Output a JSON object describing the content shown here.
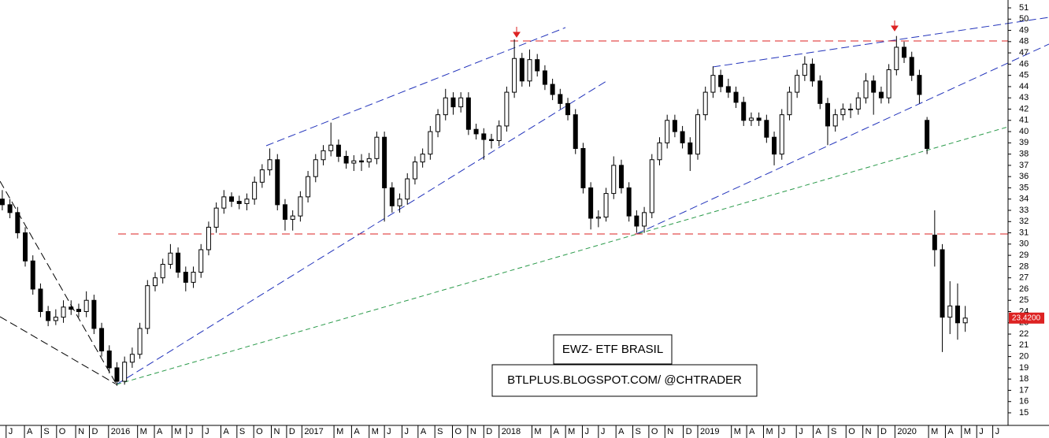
{
  "chart_data": {
    "type": "candlestick",
    "annotations": [
      "EWZ- ETF BRASIL",
      "BTLPLUS.BLOGSPOT.COM/ @CHTRADER"
    ],
    "last_price": {
      "value": 23.42,
      "label": "23.4200"
    },
    "up_color": "#ffffff",
    "down_color": "#000000",
    "wick_color": "#000000",
    "xlim": [
      -0.3,
      131.6
    ],
    "ylim": [
      13.88,
      51.7
    ],
    "yticks": [
      15,
      16,
      17,
      18,
      19,
      20,
      21,
      22,
      23,
      24,
      25,
      26,
      27,
      28,
      29,
      30,
      31,
      32,
      33,
      34,
      35,
      36,
      37,
      38,
      39,
      40,
      41,
      42,
      43,
      44,
      45,
      46,
      47,
      48,
      49,
      50,
      51
    ],
    "xticks": [
      {
        "value": 0.5,
        "label": "J"
      },
      {
        "value": 2.9,
        "label": "A"
      },
      {
        "value": 5.1,
        "label": "S"
      },
      {
        "value": 7.1,
        "label": "O"
      },
      {
        "value": 9.6,
        "label": "N"
      },
      {
        "value": 11.4,
        "label": "D"
      },
      {
        "value": 13.9,
        "label": "2016"
      },
      {
        "value": 17.7,
        "label": "M"
      },
      {
        "value": 19.9,
        "label": "A"
      },
      {
        "value": 22.2,
        "label": "M"
      },
      {
        "value": 24.1,
        "label": "J"
      },
      {
        "value": 26.2,
        "label": "J"
      },
      {
        "value": 28.6,
        "label": "A"
      },
      {
        "value": 30.7,
        "label": "S"
      },
      {
        "value": 32.9,
        "label": "O"
      },
      {
        "value": 35.2,
        "label": "N"
      },
      {
        "value": 37.2,
        "label": "D"
      },
      {
        "value": 39.2,
        "label": "2017"
      },
      {
        "value": 43.4,
        "label": "M"
      },
      {
        "value": 45.7,
        "label": "A"
      },
      {
        "value": 48,
        "label": "M"
      },
      {
        "value": 50,
        "label": "J"
      },
      {
        "value": 52.3,
        "label": "J"
      },
      {
        "value": 54.4,
        "label": "A"
      },
      {
        "value": 56.6,
        "label": "S"
      },
      {
        "value": 58.9,
        "label": "O"
      },
      {
        "value": 60.9,
        "label": "N"
      },
      {
        "value": 63,
        "label": "D"
      },
      {
        "value": 65,
        "label": "2018"
      },
      {
        "value": 69.3,
        "label": "M"
      },
      {
        "value": 71.8,
        "label": "A"
      },
      {
        "value": 73.7,
        "label": "M"
      },
      {
        "value": 75.9,
        "label": "J"
      },
      {
        "value": 78,
        "label": "J"
      },
      {
        "value": 80.3,
        "label": "A"
      },
      {
        "value": 82.5,
        "label": "S"
      },
      {
        "value": 84.6,
        "label": "O"
      },
      {
        "value": 86.7,
        "label": "N"
      },
      {
        "value": 89.1,
        "label": "D"
      },
      {
        "value": 91,
        "label": "2019"
      },
      {
        "value": 95.4,
        "label": "M"
      },
      {
        "value": 97.4,
        "label": "A"
      },
      {
        "value": 99.6,
        "label": "M"
      },
      {
        "value": 101.6,
        "label": "J"
      },
      {
        "value": 103.9,
        "label": "J"
      },
      {
        "value": 106.1,
        "label": "A"
      },
      {
        "value": 108.1,
        "label": "S"
      },
      {
        "value": 110.4,
        "label": "O"
      },
      {
        "value": 112.6,
        "label": "N"
      },
      {
        "value": 114.6,
        "label": "D"
      },
      {
        "value": 116.8,
        "label": "2020"
      },
      {
        "value": 121.2,
        "label": "M"
      },
      {
        "value": 123.4,
        "label": "A"
      },
      {
        "value": 125.5,
        "label": "M"
      },
      {
        "value": 127.5,
        "label": "J"
      },
      {
        "value": 129.6,
        "label": "J"
      }
    ],
    "ohlc": [
      [
        34,
        34.8,
        33,
        33.5
      ],
      [
        33.5,
        34,
        32.3,
        32.8
      ],
      [
        32.8,
        33.3,
        30.5,
        31
      ],
      [
        31,
        31.5,
        28,
        28.5
      ],
      [
        28.5,
        29,
        25.5,
        26
      ],
      [
        26,
        26.5,
        23.5,
        24
      ],
      [
        24,
        24.5,
        22.7,
        23.2
      ],
      [
        23.2,
        24.2,
        22.8,
        23.5
      ],
      [
        23.5,
        25,
        23,
        24.4
      ],
      [
        24.4,
        25,
        23.7,
        24.2
      ],
      [
        24.2,
        24.7,
        23.5,
        24
      ],
      [
        24,
        25.8,
        23.5,
        25
      ],
      [
        25,
        25.5,
        22,
        22.5
      ],
      [
        22.5,
        23,
        20,
        20.5
      ],
      [
        20.5,
        21,
        18.5,
        19
      ],
      [
        19,
        19.5,
        17.4,
        17.8
      ],
      [
        17.8,
        20,
        17.5,
        19.5
      ],
      [
        19.5,
        20.8,
        19,
        20.2
      ],
      [
        20.2,
        23,
        19.8,
        22.5
      ],
      [
        22.5,
        26.8,
        22,
        26.3
      ],
      [
        26.3,
        27.5,
        25.8,
        27
      ],
      [
        27,
        28.7,
        26.5,
        28.2
      ],
      [
        28.2,
        30,
        27.8,
        29.2
      ],
      [
        29.2,
        29.7,
        27,
        27.5
      ],
      [
        27.5,
        28,
        25.8,
        26.6
      ],
      [
        26.6,
        28,
        26.1,
        27.5
      ],
      [
        27.5,
        30,
        27,
        29.5
      ],
      [
        29.5,
        32,
        29,
        31.5
      ],
      [
        31.5,
        33.7,
        31,
        33.2
      ],
      [
        33.2,
        34.8,
        32.7,
        34.2
      ],
      [
        34.2,
        34.6,
        33.3,
        33.8
      ],
      [
        33.8,
        34.3,
        33.1,
        33.6
      ],
      [
        33.6,
        34.5,
        33,
        34
      ],
      [
        34,
        36,
        33.5,
        35.5
      ],
      [
        35.5,
        37.1,
        35,
        36.6
      ],
      [
        36.6,
        38.5,
        36.1,
        37.5
      ],
      [
        37.5,
        38,
        33,
        33.5
      ],
      [
        33.5,
        34,
        31.2,
        32.2
      ],
      [
        32.2,
        33,
        31.2,
        32.5
      ],
      [
        32.5,
        34.7,
        32,
        34.2
      ],
      [
        34.2,
        36.5,
        33.7,
        36
      ],
      [
        36,
        38,
        35.5,
        37.5
      ],
      [
        37.5,
        38.8,
        37,
        38.3
      ],
      [
        38.3,
        40.8,
        37.8,
        38.8
      ],
      [
        38.8,
        39.3,
        37.3,
        37.8
      ],
      [
        37.8,
        38.3,
        36.7,
        37.2
      ],
      [
        37.2,
        37.9,
        36.5,
        37.4
      ],
      [
        37.4,
        38,
        36.5,
        37.3
      ],
      [
        37.3,
        38.1,
        36.8,
        37.6
      ],
      [
        37.6,
        40,
        37.1,
        39.5
      ],
      [
        39.5,
        40,
        32,
        35
      ],
      [
        35,
        35.5,
        32.8,
        33.4
      ],
      [
        33.4,
        34.5,
        32.8,
        34
      ],
      [
        34,
        36.3,
        33.5,
        35.8
      ],
      [
        35.8,
        37.8,
        35.3,
        37.3
      ],
      [
        37.3,
        38.5,
        36.8,
        38
      ],
      [
        38,
        40.5,
        37.5,
        40
      ],
      [
        40,
        42,
        39.5,
        41.5
      ],
      [
        41.5,
        43.8,
        41,
        43
      ],
      [
        43,
        43.5,
        41.5,
        42.2
      ],
      [
        42.2,
        43.5,
        41.7,
        43
      ],
      [
        43,
        43.5,
        39.7,
        40.2
      ],
      [
        40.2,
        40.7,
        39.3,
        39.8
      ],
      [
        39.8,
        40.3,
        37.5,
        39.3
      ],
      [
        39.3,
        39.8,
        38.5,
        39.2
      ],
      [
        39.2,
        41,
        38.7,
        40.5
      ],
      [
        40.5,
        44,
        40,
        43.5
      ],
      [
        43.5,
        48.2,
        43,
        46.5
      ],
      [
        46.5,
        47,
        44,
        44.5
      ],
      [
        44.5,
        47.3,
        44,
        46.4
      ],
      [
        46.4,
        46.9,
        44.9,
        45.4
      ],
      [
        45.4,
        45.9,
        43.7,
        44.2
      ],
      [
        44.2,
        44.7,
        42.8,
        43.3
      ],
      [
        43.3,
        43.8,
        42,
        42.5
      ],
      [
        42.5,
        43,
        41,
        41.5
      ],
      [
        41.5,
        42,
        38,
        38.5
      ],
      [
        38.5,
        39,
        34.5,
        35
      ],
      [
        35,
        35.5,
        31.3,
        32.3
      ],
      [
        32.3,
        33,
        31.5,
        32.4
      ],
      [
        32.4,
        35,
        32,
        34.5
      ],
      [
        34.5,
        37.8,
        34,
        37
      ],
      [
        37,
        37.5,
        34.5,
        35
      ],
      [
        35,
        35.5,
        32,
        32.5
      ],
      [
        32.5,
        33,
        31,
        31.6
      ],
      [
        31.6,
        33.3,
        31,
        32.8
      ],
      [
        32.8,
        38,
        32.3,
        37.5
      ],
      [
        37.5,
        39.5,
        37,
        39
      ],
      [
        39,
        41.5,
        38.5,
        41
      ],
      [
        41,
        41.5,
        39.5,
        40
      ],
      [
        40,
        40.5,
        38.5,
        39
      ],
      [
        39,
        39.5,
        36.5,
        38
      ],
      [
        38,
        42,
        37.5,
        41.5
      ],
      [
        41.5,
        44,
        41,
        43.5
      ],
      [
        43.5,
        45.8,
        43,
        45
      ],
      [
        45,
        45.5,
        43.5,
        44
      ],
      [
        44,
        44.7,
        43,
        43.5
      ],
      [
        43.5,
        44,
        42.1,
        42.6
      ],
      [
        42.6,
        43.1,
        40.5,
        41
      ],
      [
        41,
        41.7,
        40.5,
        41.2
      ],
      [
        41.2,
        41.7,
        40.5,
        41
      ],
      [
        41,
        41.5,
        39,
        39.5
      ],
      [
        39.5,
        40,
        37,
        38
      ],
      [
        38,
        42,
        37.5,
        41.5
      ],
      [
        41.5,
        44,
        41,
        43.5
      ],
      [
        43.5,
        45.5,
        43,
        45
      ],
      [
        45,
        46.7,
        44.5,
        46
      ],
      [
        46,
        46.5,
        44,
        44.5
      ],
      [
        44.5,
        45,
        42,
        42.5
      ],
      [
        42.5,
        43,
        38.8,
        40.5
      ],
      [
        40.5,
        42,
        40,
        41.5
      ],
      [
        41.5,
        42.5,
        41,
        42
      ],
      [
        42,
        42.5,
        41.2,
        42
      ],
      [
        42,
        43.5,
        41.5,
        43
      ],
      [
        43,
        45.2,
        42.5,
        44.5
      ],
      [
        44.5,
        45,
        41.5,
        43.5
      ],
      [
        43.5,
        44,
        42.5,
        43
      ],
      [
        43,
        46,
        42.5,
        45.5
      ],
      [
        45.5,
        48.5,
        45,
        47.5
      ],
      [
        47.5,
        48,
        46.1,
        46.6
      ],
      [
        46.6,
        47.1,
        44.5,
        45
      ],
      [
        45,
        45.5,
        42.5,
        43.3
      ],
      [
        41,
        41.3,
        38,
        38.5
      ],
      [
        30.8,
        33,
        28,
        29.5
      ],
      [
        29.5,
        30,
        20.4,
        23.5
      ],
      [
        23.5,
        26.7,
        22,
        24.5
      ],
      [
        24.5,
        26.5,
        21.5,
        23
      ],
      [
        23,
        24.5,
        22.2,
        23.42
      ]
    ]
  }
}
